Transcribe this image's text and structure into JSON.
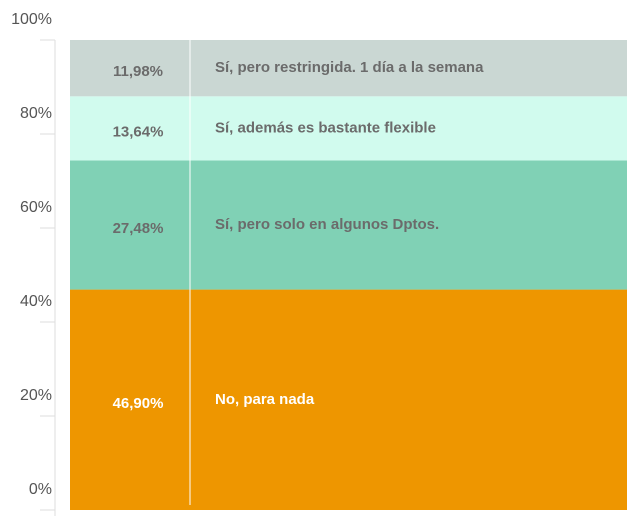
{
  "chart_data": {
    "type": "bar",
    "stacked": true,
    "series": [
      {
        "name": "No, para nada",
        "color": "#ee9600",
        "values": [
          46.9
        ],
        "value_labels": [
          "46,90%"
        ]
      },
      {
        "name": "Sí, pero solo en algunos Dptos.",
        "color": "#80d1b5",
        "values": [
          27.48
        ],
        "value_labels": [
          "27,48%"
        ]
      },
      {
        "name": "Sí, además es bastante flexible",
        "color": "#d1fbee",
        "values": [
          13.64
        ],
        "value_labels": [
          "13,64%"
        ]
      },
      {
        "name": "Sí, pero restringida. 1 día a la semana",
        "color": "#cad7d3",
        "values": [
          11.98
        ],
        "value_labels": [
          "11,98%"
        ]
      }
    ],
    "ylim": [
      0,
      100
    ],
    "yticks": [
      {
        "value": 0,
        "label": "0%"
      },
      {
        "value": 20,
        "label": "20%"
      },
      {
        "value": 40,
        "label": "40%"
      },
      {
        "value": 60,
        "label": "60%"
      },
      {
        "value": 80,
        "label": "80%"
      },
      {
        "value": 100,
        "label": "100%"
      }
    ]
  }
}
